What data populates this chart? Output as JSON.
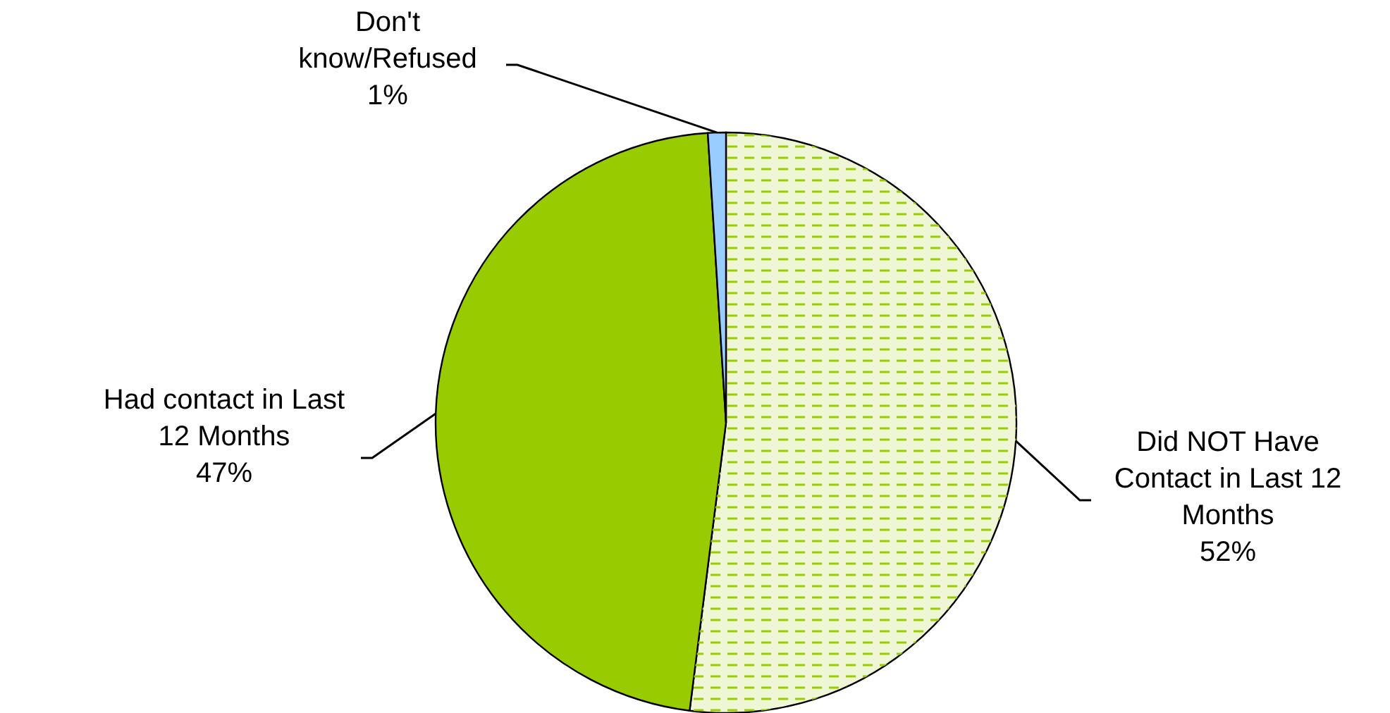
{
  "chart_data": {
    "type": "pie",
    "categories": [
      "Did NOT Have\nContact in Last 12\nMonths",
      "Had contact in Last\n12 Months",
      "Don't\nknow/Refused"
    ],
    "values": [
      52,
      47,
      1
    ],
    "colors": [
      "#eef6d6",
      "#99cc00",
      "#99ccff"
    ],
    "value_labels": [
      "52%",
      "47%",
      "1%"
    ]
  }
}
